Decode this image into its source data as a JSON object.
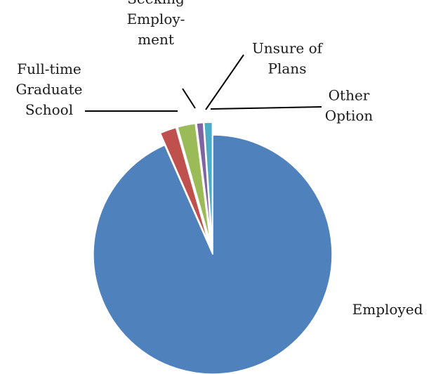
{
  "chart_data": {
    "type": "pie",
    "title": "",
    "slices": [
      {
        "label": [
          "Employed"
        ],
        "value": 93.4,
        "color": "#4F81BD",
        "exploded": false
      },
      {
        "label": [
          "Full-time",
          "Graduate",
          "School"
        ],
        "value": 2.2,
        "color": "#C0504D",
        "exploded": true
      },
      {
        "label": [
          "Seeking",
          "Employ-",
          "ment"
        ],
        "value": 2.4,
        "color": "#9BBB59",
        "exploded": true
      },
      {
        "label": [
          "Unsure of",
          "Plans"
        ],
        "value": 0.9,
        "color": "#8064A2",
        "exploded": true
      },
      {
        "label": [
          "Other",
          "Option"
        ],
        "value": 1.1,
        "color": "#4BACC6",
        "exploded": true
      }
    ],
    "start_angle_deg": 0,
    "direction": "clockwise",
    "legend": "none",
    "data_labels": "category names outside the pie, with leader lines for small slices"
  }
}
